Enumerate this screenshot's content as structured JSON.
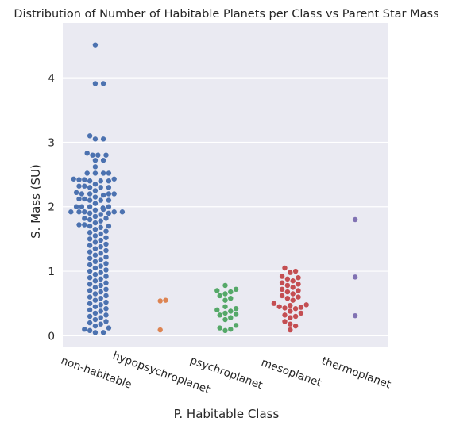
{
  "chart_data": {
    "type": "scatter",
    "style": "swarm",
    "title": "Distribution of Number of Habitable Planets per Class vs Parent Star Mass",
    "xlabel": "P. Habitable Class",
    "ylabel": "S. Mass (SU)",
    "ylim": [
      -0.18,
      4.85
    ],
    "yticks": [
      0,
      1,
      2,
      3,
      4
    ],
    "grid": true,
    "categories": [
      "non-habitable",
      "hypopsychroplanet",
      "psychroplanet",
      "mesoplanet",
      "thermoplanet"
    ],
    "colors": [
      "#4c72b0",
      "#dd8452",
      "#55a868",
      "#c44e52",
      "#8172b3"
    ],
    "series": [
      {
        "values": [
          4.51,
          3.91,
          3.91,
          3.1,
          3.05,
          3.05,
          2.83,
          2.8,
          2.8,
          2.8,
          2.72,
          2.72,
          2.62,
          2.52,
          2.52,
          2.52,
          2.52,
          2.43,
          2.43,
          2.42,
          2.42,
          2.4,
          2.4,
          2.4,
          2.35,
          2.32,
          2.32,
          2.3,
          2.3,
          2.3,
          2.25,
          2.22,
          2.2,
          2.2,
          2.2,
          2.2,
          2.18,
          2.15,
          2.12,
          2.12,
          2.1,
          2.1,
          2.1,
          2.05,
          2.0,
          2.0,
          2.0,
          2.0,
          1.98,
          1.96,
          1.95,
          1.92,
          1.92,
          1.92,
          1.92,
          1.92,
          1.9,
          1.9,
          1.88,
          1.85,
          1.82,
          1.82,
          1.8,
          1.78,
          1.75,
          1.72,
          1.72,
          1.7,
          1.7,
          1.68,
          1.65,
          1.62,
          1.6,
          1.58,
          1.55,
          1.52,
          1.5,
          1.48,
          1.45,
          1.42,
          1.4,
          1.38,
          1.35,
          1.32,
          1.3,
          1.28,
          1.25,
          1.22,
          1.2,
          1.18,
          1.15,
          1.12,
          1.1,
          1.08,
          1.05,
          1.02,
          1.0,
          0.98,
          0.95,
          0.92,
          0.9,
          0.88,
          0.85,
          0.82,
          0.8,
          0.78,
          0.75,
          0.72,
          0.7,
          0.68,
          0.65,
          0.62,
          0.6,
          0.58,
          0.55,
          0.52,
          0.5,
          0.48,
          0.45,
          0.42,
          0.4,
          0.38,
          0.35,
          0.32,
          0.3,
          0.28,
          0.25,
          0.22,
          0.2,
          0.18,
          0.15,
          0.12,
          0.1,
          0.08,
          0.05,
          0.05
        ]
      },
      {
        "values": [
          0.55,
          0.54,
          0.09
        ]
      },
      {
        "values": [
          0.78,
          0.72,
          0.7,
          0.68,
          0.65,
          0.62,
          0.58,
          0.55,
          0.45,
          0.42,
          0.4,
          0.38,
          0.35,
          0.33,
          0.32,
          0.28,
          0.25,
          0.16,
          0.12,
          0.1,
          0.08
        ]
      },
      {
        "values": [
          1.05,
          1.0,
          0.98,
          0.92,
          0.9,
          0.88,
          0.85,
          0.82,
          0.8,
          0.78,
          0.75,
          0.72,
          0.7,
          0.68,
          0.65,
          0.62,
          0.6,
          0.58,
          0.55,
          0.5,
          0.48,
          0.47,
          0.45,
          0.44,
          0.43,
          0.42,
          0.38,
          0.35,
          0.32,
          0.3,
          0.28,
          0.22,
          0.18,
          0.15,
          0.09
        ]
      },
      {
        "values": [
          1.8,
          0.91,
          0.31
        ]
      }
    ]
  }
}
